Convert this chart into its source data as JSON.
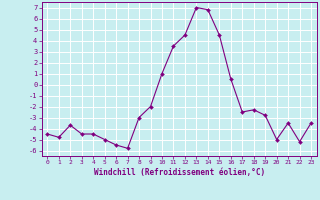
{
  "x": [
    0,
    1,
    2,
    3,
    4,
    5,
    6,
    7,
    8,
    9,
    10,
    11,
    12,
    13,
    14,
    15,
    16,
    17,
    18,
    19,
    20,
    21,
    22,
    23
  ],
  "y": [
    -4.5,
    -4.8,
    -3.7,
    -4.5,
    -4.5,
    -5.0,
    -5.5,
    -5.8,
    -3.0,
    -2.0,
    1.0,
    3.5,
    4.5,
    7.0,
    6.8,
    4.5,
    0.5,
    -2.5,
    -2.3,
    -2.8,
    -5.0,
    -3.5,
    -5.2,
    -3.5
  ],
  "line_color": "#800080",
  "marker": "D",
  "marker_size": 2.0,
  "bg_color": "#c8eef0",
  "grid_color": "#ffffff",
  "xlabel": "Windchill (Refroidissement éolien,°C)",
  "ylim": [
    -6.5,
    7.5
  ],
  "xlim": [
    -0.5,
    23.5
  ],
  "yticks": [
    -6,
    -5,
    -4,
    -3,
    -2,
    -1,
    0,
    1,
    2,
    3,
    4,
    5,
    6,
    7
  ],
  "xticks": [
    0,
    1,
    2,
    3,
    4,
    5,
    6,
    7,
    8,
    9,
    10,
    11,
    12,
    13,
    14,
    15,
    16,
    17,
    18,
    19,
    20,
    21,
    22,
    23
  ],
  "tick_color": "#800080",
  "label_color": "#800080",
  "xlabel_fontsize": 5.5,
  "xtick_fontsize": 4.5,
  "ytick_fontsize": 5.0,
  "linewidth": 0.8
}
